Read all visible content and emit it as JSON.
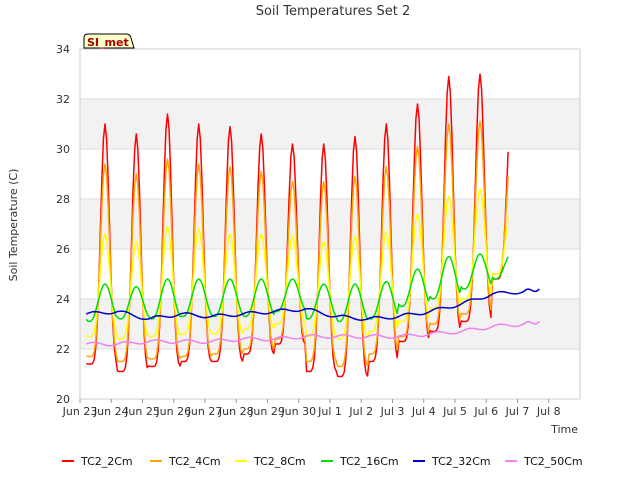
{
  "chart_data": {
    "type": "line",
    "title": "Soil Temperatures Set 2",
    "xlabel": "Time",
    "ylabel": "Soil Temperature (C)",
    "ylim": [
      20,
      34
    ],
    "yticks": [
      20,
      22,
      24,
      26,
      28,
      30,
      32,
      34
    ],
    "xlim": [
      0,
      16
    ],
    "xtick_labels": [
      "Jun 23",
      "Jun 24",
      "Jun 25",
      "Jun 26",
      "Jun 27",
      "Jun 28",
      "Jun 29",
      "Jun 30",
      "Jul 1",
      "Jul 2",
      "Jul 3",
      "Jul 4",
      "Jul 5",
      "Jul 6",
      "Jul 7",
      "Jul 8"
    ],
    "background_bands": true,
    "legend_position": "bottom",
    "annotation": "SI_met",
    "series": [
      {
        "name": "TC2_2Cm",
        "color": "#ff0000",
        "daily": [
          [
            21.4,
            31.0
          ],
          [
            21.1,
            30.6
          ],
          [
            21.3,
            31.4
          ],
          [
            21.5,
            31.0
          ],
          [
            21.5,
            30.9
          ],
          [
            21.8,
            30.6
          ],
          [
            22.2,
            30.2
          ],
          [
            21.1,
            30.2
          ],
          [
            20.9,
            30.5
          ],
          [
            21.5,
            31.0
          ],
          [
            22.3,
            31.8
          ],
          [
            22.7,
            32.9
          ],
          [
            23.1,
            33.0
          ],
          [
            24.8,
            31.4
          ]
        ]
      },
      {
        "name": "TC2_4Cm",
        "color": "#ffa500",
        "daily": [
          [
            21.7,
            29.4
          ],
          [
            21.5,
            29.0
          ],
          [
            21.6,
            29.6
          ],
          [
            21.7,
            29.4
          ],
          [
            21.8,
            29.3
          ],
          [
            22.0,
            29.1
          ],
          [
            22.4,
            28.7
          ],
          [
            21.5,
            28.7
          ],
          [
            21.3,
            28.9
          ],
          [
            21.8,
            29.3
          ],
          [
            22.5,
            30.1
          ],
          [
            23.0,
            31.0
          ],
          [
            23.4,
            31.1
          ],
          [
            25.0,
            30.0
          ]
        ]
      },
      {
        "name": "TC2_8Cm",
        "color": "#ffff00",
        "daily": [
          [
            22.5,
            26.6
          ],
          [
            22.4,
            26.3
          ],
          [
            22.5,
            26.9
          ],
          [
            22.6,
            26.8
          ],
          [
            22.6,
            26.6
          ],
          [
            22.8,
            26.6
          ],
          [
            23.0,
            26.5
          ],
          [
            22.5,
            26.3
          ],
          [
            22.4,
            26.5
          ],
          [
            22.7,
            26.7
          ],
          [
            23.1,
            27.4
          ],
          [
            23.6,
            28.1
          ],
          [
            24.0,
            28.4
          ],
          [
            25.0,
            27.8
          ]
        ]
      },
      {
        "name": "TC2_16Cm",
        "color": "#00dd00",
        "daily": [
          [
            23.1,
            24.6
          ],
          [
            23.2,
            24.5
          ],
          [
            23.2,
            24.8
          ],
          [
            23.3,
            24.8
          ],
          [
            23.3,
            24.8
          ],
          [
            23.3,
            24.8
          ],
          [
            23.5,
            24.8
          ],
          [
            23.2,
            24.6
          ],
          [
            23.1,
            24.6
          ],
          [
            23.2,
            24.7
          ],
          [
            23.7,
            25.2
          ],
          [
            24.0,
            25.7
          ],
          [
            24.4,
            25.8
          ],
          [
            24.8,
            25.8
          ]
        ]
      },
      {
        "name": "TC2_32Cm",
        "color": "#0000cc",
        "points": [
          [
            0.0,
            23.4
          ],
          [
            1.0,
            23.5
          ],
          [
            2.0,
            23.2
          ],
          [
            3.0,
            23.4
          ],
          [
            4.0,
            23.3
          ],
          [
            5.0,
            23.4
          ],
          [
            6.0,
            23.5
          ],
          [
            7.0,
            23.6
          ],
          [
            8.0,
            23.3
          ],
          [
            9.0,
            23.2
          ],
          [
            10.0,
            23.3
          ],
          [
            11.0,
            23.5
          ],
          [
            12.0,
            23.8
          ],
          [
            13.0,
            24.2
          ],
          [
            14.0,
            24.3
          ],
          [
            14.5,
            24.4
          ]
        ]
      },
      {
        "name": "TC2_50Cm",
        "color": "#ee82ee",
        "points": [
          [
            0.0,
            22.2
          ],
          [
            1.0,
            22.2
          ],
          [
            2.0,
            22.3
          ],
          [
            3.0,
            22.3
          ],
          [
            4.0,
            22.3
          ],
          [
            5.0,
            22.4
          ],
          [
            6.0,
            22.4
          ],
          [
            7.0,
            22.5
          ],
          [
            8.0,
            22.5
          ],
          [
            9.0,
            22.5
          ],
          [
            10.0,
            22.5
          ],
          [
            11.0,
            22.6
          ],
          [
            12.0,
            22.7
          ],
          [
            13.0,
            22.9
          ],
          [
            14.0,
            23.0
          ],
          [
            14.5,
            23.1
          ]
        ]
      }
    ]
  }
}
